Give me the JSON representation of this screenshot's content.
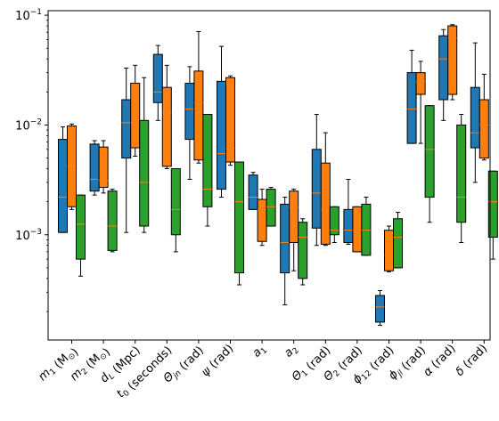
{
  "chart_data": {
    "type": "boxplot",
    "y_scale": "log",
    "ylim": [
      0.00011,
      0.11
    ],
    "yticks": [
      {
        "value": 0.001,
        "base": "10",
        "exp": "−3"
      },
      {
        "value": 0.01,
        "base": "10",
        "exp": "−2"
      },
      {
        "value": 0.1,
        "base": "10",
        "exp": "−1"
      }
    ],
    "categories": [
      {
        "main": "m",
        "sub": "1",
        "unit": " (M",
        "unitsub": "⊙",
        "tail": ")"
      },
      {
        "main": "m",
        "sub": "2",
        "unit": " (M",
        "unitsub": "⊙",
        "tail": ")"
      },
      {
        "main": "d",
        "sub": "L",
        "unit": " (Mpc)",
        "unitsub": "",
        "tail": ""
      },
      {
        "main": "t",
        "sub": "0",
        "unit": " (seconds)",
        "unitsub": "",
        "tail": ""
      },
      {
        "main": "Θ",
        "sub": "jn",
        "unit": " (rad)",
        "unitsub": "",
        "tail": ""
      },
      {
        "main": "ψ",
        "sub": "",
        "unit": " (rad)",
        "unitsub": "",
        "tail": ""
      },
      {
        "main": "a",
        "sub": "1",
        "unit": "",
        "unitsub": "",
        "tail": ""
      },
      {
        "main": "a",
        "sub": "2",
        "unit": "",
        "unitsub": "",
        "tail": ""
      },
      {
        "main": "Θ",
        "sub": "1",
        "unit": " (rad)",
        "unitsub": "",
        "tail": ""
      },
      {
        "main": "Θ",
        "sub": "2",
        "unit": " (rad)",
        "unitsub": "",
        "tail": ""
      },
      {
        "main": "ϕ",
        "sub": "12",
        "unit": " (rad)",
        "unitsub": "",
        "tail": ""
      },
      {
        "main": "ϕ",
        "sub": "jl",
        "unit": " (rad)",
        "unitsub": "",
        "tail": ""
      },
      {
        "main": "α",
        "sub": "",
        "unit": " (rad)",
        "unitsub": "",
        "tail": ""
      },
      {
        "main": "δ",
        "sub": "",
        "unit": " (rad)",
        "unitsub": "",
        "tail": ""
      }
    ],
    "series": [
      {
        "color": "#1f77b4",
        "boxes": [
          {
            "whislo": 0.00105,
            "q1": 0.00105,
            "med": 0.0022,
            "q3": 0.0074,
            "whishi": 0.0096
          },
          {
            "whislo": 0.0023,
            "q1": 0.0025,
            "med": 0.0032,
            "q3": 0.0067,
            "whishi": 0.0072
          },
          {
            "whislo": 0.00105,
            "q1": 0.005,
            "med": 0.0105,
            "q3": 0.017,
            "whishi": 0.033
          },
          {
            "whislo": 0.011,
            "q1": 0.016,
            "med": 0.02,
            "q3": 0.044,
            "whishi": 0.053
          },
          {
            "whislo": 0.0032,
            "q1": 0.0074,
            "med": 0.014,
            "q3": 0.024,
            "whishi": 0.034
          },
          {
            "whislo": 0.0022,
            "q1": 0.0026,
            "med": 0.0055,
            "q3": 0.025,
            "whishi": 0.052
          },
          {
            "whislo": 0.0017,
            "q1": 0.0017,
            "med": 0.0022,
            "q3": 0.0035,
            "whishi": 0.0037
          },
          {
            "whislo": 0.00023,
            "q1": 0.00045,
            "med": 0.00085,
            "q3": 0.0019,
            "whishi": 0.0022
          },
          {
            "whislo": 0.0008,
            "q1": 0.00115,
            "med": 0.0024,
            "q3": 0.006,
            "whishi": 0.0125
          },
          {
            "whislo": 0.00082,
            "q1": 0.00085,
            "med": 0.0011,
            "q3": 0.0017,
            "whishi": 0.0032
          },
          {
            "whislo": 0.00015,
            "q1": 0.00016,
            "med": 0.00022,
            "q3": 0.00028,
            "whishi": 0.00031
          },
          {
            "whislo": 0.0068,
            "q1": 0.0068,
            "med": 0.014,
            "q3": 0.03,
            "whishi": 0.048
          },
          {
            "whislo": 0.011,
            "q1": 0.017,
            "med": 0.04,
            "q3": 0.065,
            "whishi": 0.074
          },
          {
            "whislo": 0.003,
            "q1": 0.0062,
            "med": 0.0085,
            "q3": 0.022,
            "whishi": 0.056
          }
        ]
      },
      {
        "color": "#ff7f0e",
        "boxes": [
          {
            "whislo": 0.0017,
            "q1": 0.0018,
            "med": 0.0042,
            "q3": 0.0098,
            "whishi": 0.0102
          },
          {
            "whislo": 0.0024,
            "q1": 0.0027,
            "med": 0.0031,
            "q3": 0.0063,
            "whishi": 0.0072
          },
          {
            "whislo": 0.0052,
            "q1": 0.0062,
            "med": 0.0105,
            "q3": 0.024,
            "whishi": 0.035
          },
          {
            "whislo": 0.004,
            "q1": 0.0042,
            "med": 0.013,
            "q3": 0.022,
            "whishi": 0.035
          },
          {
            "whislo": 0.0045,
            "q1": 0.0048,
            "med": 0.016,
            "q3": 0.031,
            "whishi": 0.071
          },
          {
            "whislo": 0.0043,
            "q1": 0.0046,
            "med": 0.0062,
            "q3": 0.027,
            "whishi": 0.028
          },
          {
            "whislo": 0.0008,
            "q1": 0.00087,
            "med": 0.0017,
            "q3": 0.0021,
            "whishi": 0.0026
          },
          {
            "whislo": 0.00047,
            "q1": 0.00085,
            "med": 0.0018,
            "q3": 0.0025,
            "whishi": 0.0026
          },
          {
            "whislo": 0.0008,
            "q1": 0.00082,
            "med": 0.0017,
            "q3": 0.0045,
            "whishi": 0.0085
          },
          {
            "whislo": 0.0007,
            "q1": 0.0007,
            "med": 0.0011,
            "q3": 0.0018,
            "whishi": 0.0018
          },
          {
            "whislo": 0.00046,
            "q1": 0.00047,
            "med": 0.00065,
            "q3": 0.0011,
            "whishi": 0.0012
          },
          {
            "whislo": 0.0068,
            "q1": 0.019,
            "med": 0.025,
            "q3": 0.03,
            "whishi": 0.038
          },
          {
            "whislo": 0.017,
            "q1": 0.019,
            "med": 0.062,
            "q3": 0.08,
            "whishi": 0.082
          },
          {
            "whislo": 0.0048,
            "q1": 0.005,
            "med": 0.01,
            "q3": 0.017,
            "whishi": 0.029
          }
        ]
      },
      {
        "color": "#2ca02c",
        "boxes": [
          {
            "whislo": 0.00042,
            "q1": 0.0006,
            "med": 0.00125,
            "q3": 0.0023,
            "whishi": 0.0023
          },
          {
            "whislo": 0.0007,
            "q1": 0.00072,
            "med": 0.0012,
            "q3": 0.0025,
            "whishi": 0.0026
          },
          {
            "whislo": 0.00105,
            "q1": 0.0012,
            "med": 0.003,
            "q3": 0.011,
            "whishi": 0.027
          },
          {
            "whislo": 0.0007,
            "q1": 0.001,
            "med": 0.0017,
            "q3": 0.004,
            "whishi": 0.004
          },
          {
            "whislo": 0.0012,
            "q1": 0.0018,
            "med": 0.0026,
            "q3": 0.0125,
            "whishi": 0.0125
          },
          {
            "whislo": 0.00035,
            "q1": 0.00045,
            "med": 0.002,
            "q3": 0.0046,
            "whishi": 0.0046
          },
          {
            "whislo": 0.0012,
            "q1": 0.0012,
            "med": 0.0018,
            "q3": 0.0026,
            "whishi": 0.0027
          },
          {
            "whislo": 0.00035,
            "q1": 0.0004,
            "med": 0.00095,
            "q3": 0.0013,
            "whishi": 0.0014
          },
          {
            "whislo": 0.00085,
            "q1": 0.001,
            "med": 0.0011,
            "q3": 0.0018,
            "whishi": 0.0018
          },
          {
            "whislo": 0.00065,
            "q1": 0.00065,
            "med": 0.0011,
            "q3": 0.0019,
            "whishi": 0.0022
          },
          {
            "whislo": 0.0005,
            "q1": 0.0005,
            "med": 0.00095,
            "q3": 0.0014,
            "whishi": 0.0016
          },
          {
            "whislo": 0.0013,
            "q1": 0.0022,
            "med": 0.006,
            "q3": 0.015,
            "whishi": 0.015
          },
          {
            "whislo": 0.00085,
            "q1": 0.0013,
            "med": 0.0022,
            "q3": 0.01,
            "whishi": 0.0125
          },
          {
            "whislo": 0.0006,
            "q1": 0.00095,
            "med": 0.002,
            "q3": 0.0038,
            "whishi": 0.0038
          }
        ]
      }
    ],
    "median_color": "#ff7f0e",
    "grid": false,
    "legend": "none"
  }
}
